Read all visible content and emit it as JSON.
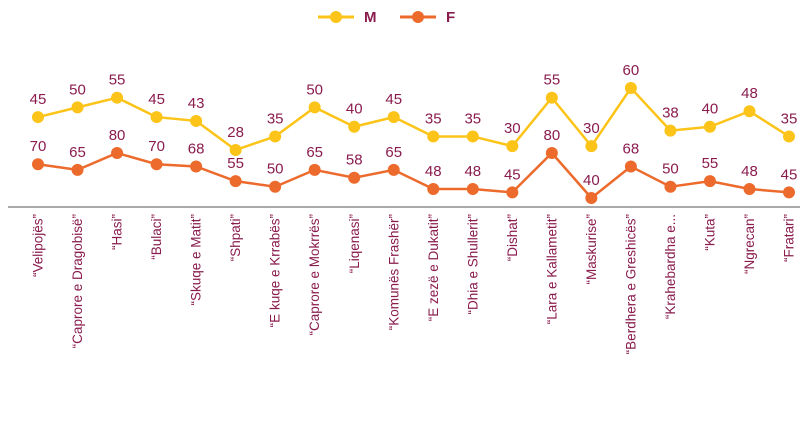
{
  "chart_data": {
    "type": "line",
    "categories": [
      "“Velipojës”",
      "“Caprore e Dragobisë”",
      "“Hasi”",
      "“Bulaci”",
      "“Skuqe e Matit”",
      "“Shpati”",
      "“E kuqe e Krrabës”",
      "“Caprore e Mokrrës”",
      "“Liqenasi”",
      "“Komunës Frashër”",
      "“E zezë e Dukatit”",
      "“Dhia e Shullerit”",
      "“Dishat”",
      "“Lara e Kallametit”",
      "“Maskurise”",
      "“Berdhera e Greshicës”",
      "“Krahebardha e...",
      "“Kuta”",
      "“Ngrecan”",
      "“Fratari”"
    ],
    "series": [
      {
        "name": "M",
        "color": "#fcc418",
        "values": [
          45,
          50,
          55,
          45,
          43,
          28,
          35,
          50,
          40,
          45,
          35,
          35,
          30,
          55,
          30,
          60,
          38,
          40,
          48,
          35
        ]
      },
      {
        "name": "F",
        "color": "#ec6a2c",
        "values": [
          70,
          65,
          80,
          70,
          68,
          55,
          50,
          65,
          58,
          65,
          48,
          48,
          45,
          80,
          40,
          68,
          50,
          55,
          48,
          45
        ]
      }
    ],
    "legend": "top"
  }
}
